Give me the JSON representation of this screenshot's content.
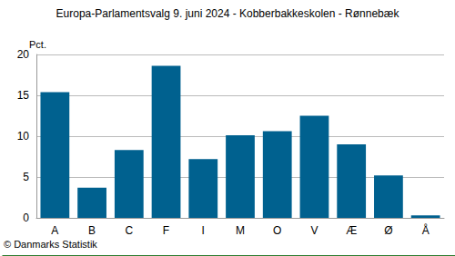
{
  "chart_data": {
    "type": "bar",
    "title": "Europa-Parlamentsvalg 9. juni 2024 - Kobberbakkeskolen - Rønnebæk",
    "ylabel": "Pct.",
    "annotation": "© Danmarks Statistik",
    "categories": [
      "A",
      "B",
      "C",
      "F",
      "I",
      "M",
      "O",
      "V",
      "Æ",
      "Ø",
      "Å"
    ],
    "values": [
      15.4,
      3.7,
      8.3,
      18.6,
      7.2,
      10.1,
      10.6,
      12.5,
      9.0,
      5.2,
      0.3
    ],
    "color": "#00618f",
    "ylim": [
      0,
      20
    ],
    "yticks": [
      0,
      5,
      10,
      15,
      20
    ],
    "grid": true
  }
}
